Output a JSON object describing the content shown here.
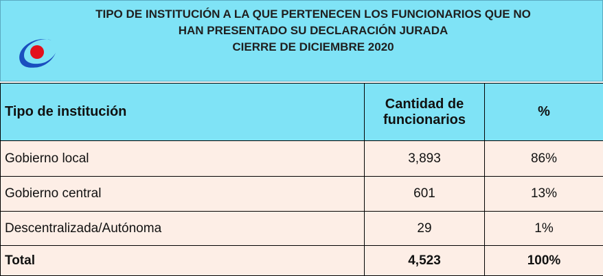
{
  "header": {
    "title_lines": [
      "TIPO DE INSTITUCIÓN A LA QUE PERTENECEN LOS FUNCIONARIOS QUE NO",
      "HAN PRESENTADO SU DECLARACIÓN JURADA",
      "CIERRE DE DICIEMBRE 2020"
    ]
  },
  "table": {
    "columns": [
      "Tipo de institución",
      "Cantidad de funcionarios",
      "%"
    ],
    "rows": [
      [
        "Gobierno local",
        "3,893",
        "86%"
      ],
      [
        "Gobierno central",
        "601",
        "13%"
      ],
      [
        "Descentralizada/Autónoma",
        "29",
        "1%"
      ]
    ],
    "total": [
      "Total",
      "4,523",
      "100%"
    ]
  }
}
